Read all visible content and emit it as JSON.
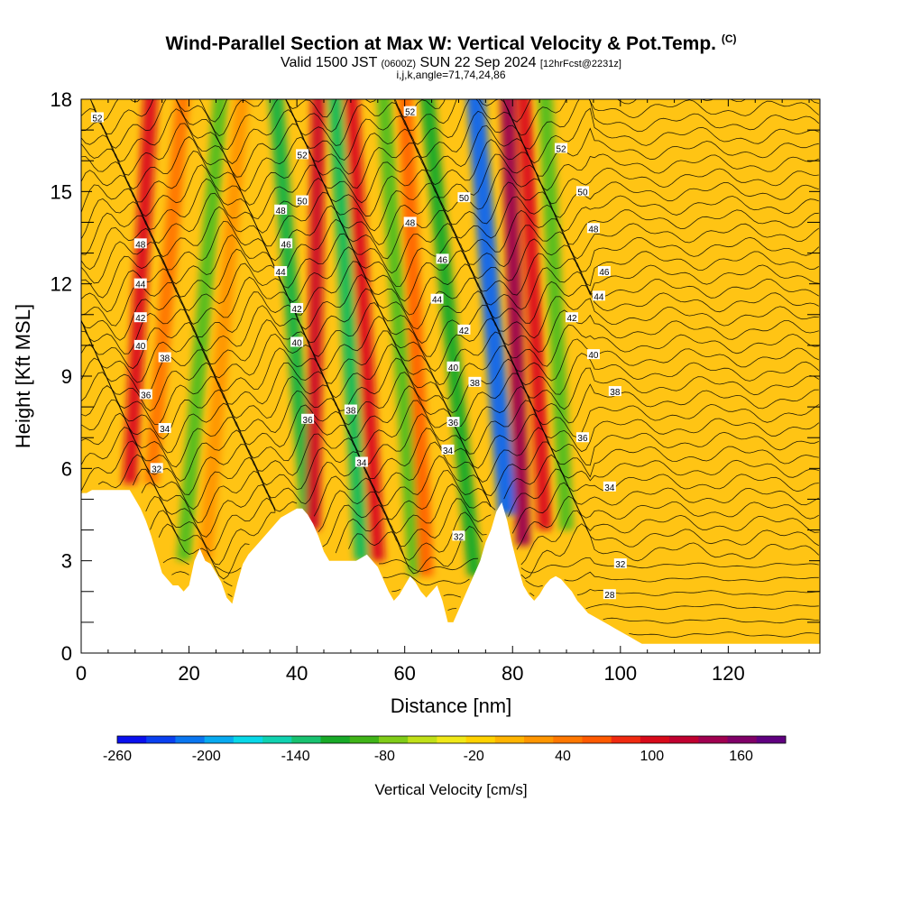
{
  "chart_data": {
    "type": "heatmap",
    "title": "Wind-Parallel Section at Max W: Vertical Velocity & Pot.Temp.",
    "title_mark": "(C)",
    "subtitle_parts": [
      "Valid 1500 JST ",
      "(0600Z)",
      " SUN 22 Sep 2024 ",
      "[12hrFcst@2231z]"
    ],
    "subtitle2": "i,j,k,angle=71,74,24,86",
    "xlabel": "Distance [nm]",
    "ylabel": "Height [Kft MSL]",
    "xlim": [
      0,
      137
    ],
    "ylim": [
      0,
      18
    ],
    "xticks": [
      "0",
      "20",
      "40",
      "60",
      "80",
      "100",
      "120"
    ],
    "yticks": [
      "0",
      "3",
      "6",
      "9",
      "12",
      "15",
      "18"
    ],
    "colorbar_label": "Vertical Velocity [cm/s]",
    "colorbar_ticks": [
      "-260",
      "-200",
      "-140",
      "-80",
      "-20",
      "40",
      "100",
      "160"
    ],
    "colorbar_colors": [
      "#0a10ee",
      "#0a40f0",
      "#0a76f0",
      "#08aaf0",
      "#08d8e8",
      "#10d2b0",
      "#18c270",
      "#18aa28",
      "#40b418",
      "#80cc18",
      "#c0e018",
      "#f0e818",
      "#ffd200",
      "#ffb400",
      "#ff9600",
      "#ff7800",
      "#ff5a00",
      "#f02a10",
      "#d80a1a",
      "#c00030",
      "#a00050",
      "#800068",
      "#600080"
    ],
    "terrain_heights_kft": [
      [
        0,
        5.2
      ],
      [
        1,
        5.2
      ],
      [
        2,
        5.3
      ],
      [
        3,
        5.3
      ],
      [
        4,
        5.3
      ],
      [
        5,
        5.3
      ],
      [
        6,
        5.3
      ],
      [
        7,
        5.3
      ],
      [
        8,
        5.3
      ],
      [
        9,
        5.3
      ],
      [
        10,
        5.0
      ],
      [
        11,
        4.7
      ],
      [
        12,
        4.3
      ],
      [
        13,
        3.8
      ],
      [
        14,
        3.2
      ],
      [
        15,
        2.6
      ],
      [
        16,
        2.4
      ],
      [
        17,
        2.2
      ],
      [
        18,
        2.2
      ],
      [
        19,
        2.0
      ],
      [
        20,
        2.2
      ],
      [
        21,
        3.0
      ],
      [
        22,
        3.4
      ],
      [
        23,
        3.0
      ],
      [
        24,
        2.9
      ],
      [
        25,
        2.6
      ],
      [
        26,
        2.3
      ],
      [
        27,
        1.8
      ],
      [
        28,
        1.6
      ],
      [
        29,
        2.3
      ],
      [
        30,
        2.9
      ],
      [
        31,
        3.2
      ],
      [
        32,
        3.4
      ],
      [
        33,
        3.6
      ],
      [
        34,
        3.8
      ],
      [
        35,
        4.0
      ],
      [
        36,
        4.2
      ],
      [
        37,
        4.4
      ],
      [
        38,
        4.5
      ],
      [
        39,
        4.6
      ],
      [
        40,
        4.7
      ],
      [
        41,
        4.7
      ],
      [
        42,
        4.5
      ],
      [
        43,
        4.2
      ],
      [
        44,
        3.8
      ],
      [
        45,
        3.3
      ],
      [
        46,
        3.0
      ],
      [
        47,
        3.0
      ],
      [
        48,
        3.0
      ],
      [
        49,
        3.0
      ],
      [
        50,
        3.0
      ],
      [
        51,
        3.0
      ],
      [
        52,
        3.1
      ],
      [
        53,
        3.2
      ],
      [
        54,
        3.0
      ],
      [
        55,
        2.8
      ],
      [
        56,
        2.4
      ],
      [
        57,
        2.0
      ],
      [
        58,
        1.7
      ],
      [
        59,
        1.9
      ],
      [
        60,
        2.2
      ],
      [
        61,
        2.5
      ],
      [
        62,
        2.3
      ],
      [
        63,
        2.0
      ],
      [
        64,
        1.8
      ],
      [
        65,
        2.0
      ],
      [
        66,
        2.2
      ],
      [
        67,
        1.7
      ],
      [
        68,
        1.0
      ],
      [
        69,
        1.0
      ],
      [
        70,
        1.4
      ],
      [
        71,
        1.8
      ],
      [
        72,
        2.2
      ],
      [
        73,
        2.6
      ],
      [
        74,
        3.0
      ],
      [
        75,
        3.6
      ],
      [
        76,
        4.0
      ],
      [
        77,
        4.6
      ],
      [
        78,
        4.9
      ],
      [
        79,
        4.3
      ],
      [
        80,
        3.5
      ],
      [
        81,
        2.8
      ],
      [
        82,
        2.2
      ],
      [
        83,
        1.9
      ],
      [
        84,
        1.7
      ],
      [
        85,
        1.9
      ],
      [
        86,
        2.2
      ],
      [
        87,
        2.4
      ],
      [
        88,
        2.5
      ],
      [
        89,
        2.4
      ],
      [
        90,
        2.2
      ],
      [
        91,
        2.0
      ],
      [
        92,
        1.7
      ],
      [
        93,
        1.5
      ],
      [
        94,
        1.3
      ],
      [
        95,
        1.2
      ],
      [
        96,
        1.1
      ],
      [
        97,
        1.0
      ],
      [
        98,
        0.9
      ],
      [
        99,
        0.8
      ],
      [
        100,
        0.7
      ],
      [
        101,
        0.6
      ],
      [
        102,
        0.5
      ],
      [
        103,
        0.4
      ],
      [
        104,
        0.3
      ],
      [
        106,
        0.3
      ],
      [
        120,
        0.3
      ],
      [
        137,
        0.3
      ]
    ],
    "vertical_velocity_plumes": [
      {
        "x_base": 9,
        "x_top": 13,
        "y_base": 5.5,
        "w_cm_s": 110
      },
      {
        "x_base": 13,
        "x_top": 19,
        "y_base": 5.5,
        "w_cm_s": 60
      },
      {
        "x_base": 19,
        "x_top": 26,
        "y_base": 3.0,
        "w_cm_s": -60
      },
      {
        "x_base": 23,
        "x_top": 30,
        "y_base": 3.0,
        "w_cm_s": 40
      },
      {
        "x_base": 42,
        "x_top": 36,
        "y_base": 4.5,
        "w_cm_s": -90
      },
      {
        "x_base": 43,
        "x_top": 44,
        "y_base": 4.0,
        "w_cm_s": 120
      },
      {
        "x_base": 52,
        "x_top": 47,
        "y_base": 3.0,
        "w_cm_s": -100
      },
      {
        "x_base": 55,
        "x_top": 50,
        "y_base": 3.0,
        "w_cm_s": 110
      },
      {
        "x_base": 62,
        "x_top": 56,
        "y_base": 2.5,
        "w_cm_s": -60
      },
      {
        "x_base": 64,
        "x_top": 60,
        "y_base": 2.5,
        "w_cm_s": 70
      },
      {
        "x_base": 73,
        "x_top": 64,
        "y_base": 2.5,
        "w_cm_s": -80
      },
      {
        "x_base": 79,
        "x_top": 73,
        "y_base": 4.5,
        "w_cm_s": -210
      },
      {
        "x_base": 82,
        "x_top": 79,
        "y_base": 3.5,
        "w_cm_s": 150
      },
      {
        "x_base": 86,
        "x_top": 82,
        "y_base": 4.0,
        "w_cm_s": 110
      },
      {
        "x_base": 90,
        "x_top": 86,
        "y_base": 4.0,
        "w_cm_s": -60
      }
    ],
    "theta_labels": [
      {
        "x": 3,
        "y": 17.4,
        "text": "52"
      },
      {
        "x": 11,
        "y": 13.3,
        "text": "48"
      },
      {
        "x": 11,
        "y": 12.0,
        "text": "44"
      },
      {
        "x": 11,
        "y": 10.9,
        "text": "42"
      },
      {
        "x": 11,
        "y": 10.0,
        "text": "40"
      },
      {
        "x": 15.5,
        "y": 9.6,
        "text": "38"
      },
      {
        "x": 12,
        "y": 8.4,
        "text": "36"
      },
      {
        "x": 15.5,
        "y": 7.3,
        "text": "34"
      },
      {
        "x": 14,
        "y": 6.0,
        "text": "32"
      },
      {
        "x": 41,
        "y": 16.2,
        "text": "52"
      },
      {
        "x": 41,
        "y": 14.7,
        "text": "50"
      },
      {
        "x": 37,
        "y": 14.4,
        "text": "48"
      },
      {
        "x": 38,
        "y": 13.3,
        "text": "46"
      },
      {
        "x": 37,
        "y": 12.4,
        "text": "44"
      },
      {
        "x": 40,
        "y": 11.2,
        "text": "42"
      },
      {
        "x": 40,
        "y": 10.1,
        "text": "40"
      },
      {
        "x": 42,
        "y": 7.6,
        "text": "36"
      },
      {
        "x": 50,
        "y": 7.9,
        "text": "38"
      },
      {
        "x": 52,
        "y": 6.2,
        "text": "34"
      },
      {
        "x": 61,
        "y": 17.6,
        "text": "52"
      },
      {
        "x": 71,
        "y": 14.8,
        "text": "50"
      },
      {
        "x": 61,
        "y": 14.0,
        "text": "48"
      },
      {
        "x": 67,
        "y": 12.8,
        "text": "46"
      },
      {
        "x": 66,
        "y": 11.5,
        "text": "44"
      },
      {
        "x": 71,
        "y": 10.5,
        "text": "42"
      },
      {
        "x": 69,
        "y": 9.3,
        "text": "40"
      },
      {
        "x": 73,
        "y": 8.8,
        "text": "38"
      },
      {
        "x": 69,
        "y": 7.5,
        "text": "36"
      },
      {
        "x": 68,
        "y": 6.6,
        "text": "34"
      },
      {
        "x": 70,
        "y": 3.8,
        "text": "32"
      },
      {
        "x": 89,
        "y": 16.4,
        "text": "52"
      },
      {
        "x": 93,
        "y": 15.0,
        "text": "50"
      },
      {
        "x": 95,
        "y": 13.8,
        "text": "48"
      },
      {
        "x": 97,
        "y": 12.4,
        "text": "46"
      },
      {
        "x": 96,
        "y": 11.6,
        "text": "44"
      },
      {
        "x": 91,
        "y": 10.9,
        "text": "42"
      },
      {
        "x": 95,
        "y": 9.7,
        "text": "40"
      },
      {
        "x": 99,
        "y": 8.5,
        "text": "38"
      },
      {
        "x": 93,
        "y": 7.0,
        "text": "36"
      },
      {
        "x": 98,
        "y": 5.4,
        "text": "34"
      },
      {
        "x": 100,
        "y": 2.9,
        "text": "32"
      },
      {
        "x": 98,
        "y": 1.9,
        "text": "28"
      }
    ]
  }
}
